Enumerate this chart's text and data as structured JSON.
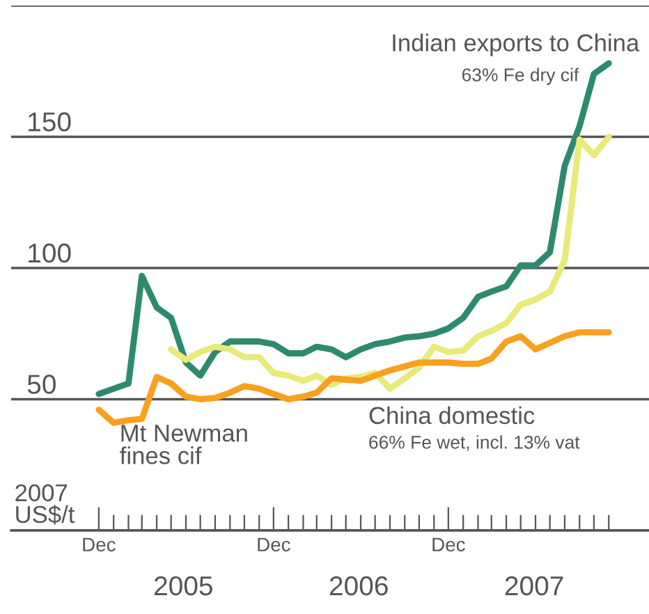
{
  "chart_data": {
    "type": "line",
    "ylabel": "2007\nUS$/t",
    "x": [
      "2004-12",
      "2005-01",
      "2005-02",
      "2005-03",
      "2005-04",
      "2005-05",
      "2005-06",
      "2005-07",
      "2005-08",
      "2005-09",
      "2005-10",
      "2005-11",
      "2005-12",
      "2006-01",
      "2006-02",
      "2006-03",
      "2006-04",
      "2006-05",
      "2006-06",
      "2006-07",
      "2006-08",
      "2006-09",
      "2006-10",
      "2006-11",
      "2006-12",
      "2007-01",
      "2007-02",
      "2007-03",
      "2007-04",
      "2007-05",
      "2007-06",
      "2007-07",
      "2007-08",
      "2007-09",
      "2007-10",
      "2007-11"
    ],
    "series": [
      {
        "name": "Indian exports to China",
        "color": "#2e8a6e",
        "values": [
          52,
          54,
          56,
          97,
          85,
          81,
          64,
          59,
          68,
          72,
          72,
          72,
          71,
          67.5,
          67.5,
          70,
          69,
          66,
          69,
          71,
          72,
          73.5,
          74,
          75,
          77,
          81,
          89,
          91,
          93,
          101,
          101,
          106,
          139,
          154,
          174,
          178
        ]
      },
      {
        "name": "China domestic",
        "color": "#e8ea7a",
        "x": [
          "2005-05",
          "2005-06",
          "2005-07",
          "2005-08",
          "2005-09",
          "2005-10",
          "2005-11",
          "2005-12",
          "2006-01",
          "2006-02",
          "2006-03",
          "2006-04",
          "2006-05",
          "2006-06",
          "2006-07",
          "2006-08",
          "2006-09",
          "2006-10",
          "2006-11",
          "2006-12",
          "2007-01",
          "2007-02",
          "2007-03",
          "2007-04",
          "2007-05",
          "2007-06",
          "2007-07",
          "2007-08",
          "2007-09",
          "2007-10",
          "2007-11"
        ],
        "values": [
          69,
          65,
          68,
          70,
          69,
          66,
          66,
          60,
          59,
          57,
          59,
          55.5,
          58,
          58.5,
          60,
          54,
          58,
          62,
          70,
          68,
          68.5,
          74,
          76,
          79,
          86,
          88,
          91,
          103,
          149,
          143,
          150
        ]
      },
      {
        "name": "Mt Newman\nfines cif",
        "color": "#f7a11e",
        "values": [
          46,
          41,
          42,
          42.5,
          58.5,
          56,
          51,
          50,
          50.5,
          52.5,
          55,
          54,
          52,
          50,
          51,
          52.5,
          58,
          57.5,
          57,
          59,
          61,
          62.5,
          64,
          64,
          64,
          63.5,
          63.5,
          65.5,
          72,
          74,
          69,
          71.5,
          74,
          75.5,
          75.5,
          75.5
        ]
      }
    ],
    "annotations": [
      "63% Fe dry cif",
      "66% Fe wet, incl. 13% vat",
      "2005",
      "2006",
      "2007"
    ],
    "xlim": [
      "2004-06-01",
      "2008-01-24"
    ],
    "xticks": [
      {
        "value": "2004-12",
        "label": "Dec"
      },
      {
        "value": "2005-01",
        "label": null
      },
      {
        "value": "2005-02",
        "label": null
      },
      {
        "value": "2005-03",
        "label": null
      },
      {
        "value": "2005-04",
        "label": null
      },
      {
        "value": "2005-05",
        "label": null
      },
      {
        "value": "2005-06",
        "label": null
      },
      {
        "value": "2005-07",
        "label": null
      },
      {
        "value": "2005-08",
        "label": null
      },
      {
        "value": "2005-09",
        "label": null
      },
      {
        "value": "2005-10",
        "label": null
      },
      {
        "value": "2005-11",
        "label": null
      },
      {
        "value": "2005-12",
        "label": "Dec"
      },
      {
        "value": "2006-01",
        "label": null
      },
      {
        "value": "2006-02",
        "label": null
      },
      {
        "value": "2006-03",
        "label": null
      },
      {
        "value": "2006-04",
        "label": null
      },
      {
        "value": "2006-05",
        "label": null
      },
      {
        "value": "2006-06",
        "label": null
      },
      {
        "value": "2006-07",
        "label": null
      },
      {
        "value": "2006-08",
        "label": null
      },
      {
        "value": "2006-09",
        "label": null
      },
      {
        "value": "2006-10",
        "label": null
      },
      {
        "value": "2006-11",
        "label": null
      },
      {
        "value": "2006-12",
        "label": "Dec"
      },
      {
        "value": "2007-01",
        "label": null
      },
      {
        "value": "2007-02",
        "label": null
      },
      {
        "value": "2007-03",
        "label": null
      },
      {
        "value": "2007-04",
        "label": null
      },
      {
        "value": "2007-05",
        "label": null
      },
      {
        "value": "2007-06",
        "label": null
      },
      {
        "value": "2007-07",
        "label": null
      },
      {
        "value": "2007-08",
        "label": null
      },
      {
        "value": "2007-09",
        "label": null
      },
      {
        "value": "2007-10",
        "label": null
      },
      {
        "value": "2007-11",
        "label": null
      }
    ],
    "ylim": [
      0,
      200
    ],
    "yticks": [
      {
        "value": 0,
        "label": null
      },
      50,
      100,
      150,
      {
        "value": 200,
        "label": null
      }
    ],
    "grid": "y",
    "legend": false,
    "marker": "none",
    "line_style": "solid"
  }
}
